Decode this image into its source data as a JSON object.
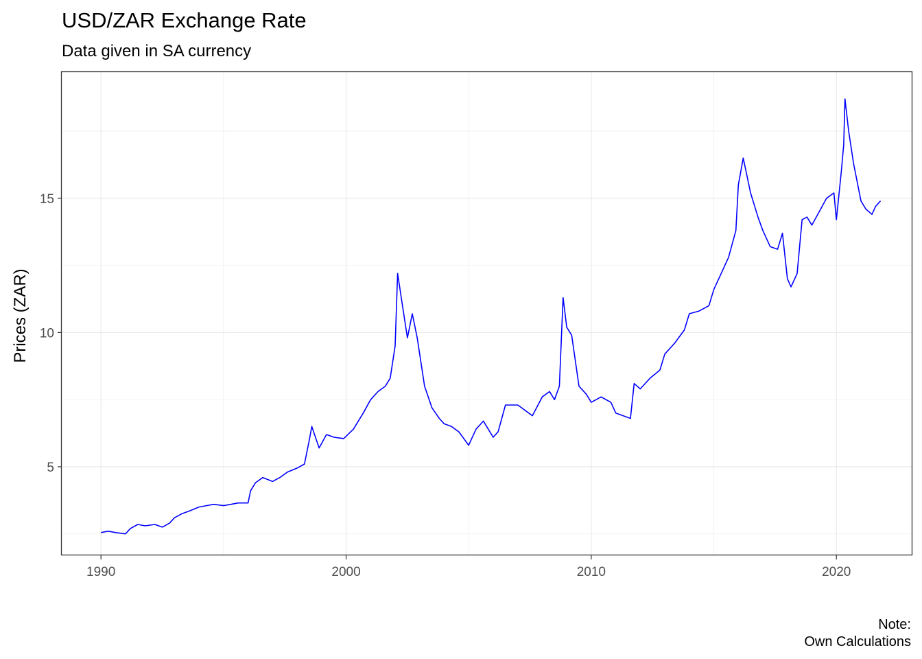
{
  "chart_data": {
    "type": "line",
    "title": "USD/ZAR Exchange Rate",
    "subtitle": "Data given in SA currency",
    "xlabel": "",
    "ylabel": "Prices (ZAR)",
    "caption_line1": "Note:",
    "caption_line2": "Own Calculations",
    "xlim": [
      1988.4,
      2023.1
    ],
    "ylim": [
      1.7,
      19.7
    ],
    "x_ticks": [
      1990,
      2000,
      2010,
      2020
    ],
    "x_tick_labels": [
      "1990",
      "2000",
      "2010",
      "2020"
    ],
    "y_ticks": [
      5,
      10,
      15
    ],
    "y_tick_labels": [
      "5",
      "10",
      "15"
    ],
    "grid": true,
    "line_color": "#0000ff",
    "series": [
      {
        "x": [
          1990.0,
          1990.3,
          1990.6,
          1991.0,
          1991.2,
          1991.5,
          1991.8,
          1992.2,
          1992.5,
          1992.8,
          1993.0,
          1993.3,
          1993.6,
          1994.0,
          1994.3,
          1994.6,
          1995.0,
          1995.3,
          1995.6,
          1996.0,
          1996.1,
          1996.3,
          1996.6,
          1997.0,
          1997.3,
          1997.6,
          1998.0,
          1998.3,
          1998.5,
          1998.6,
          1998.9,
          1999.2,
          1999.5,
          1999.9,
          2000.3,
          2000.7,
          2001.0,
          2001.3,
          2001.6,
          2001.8,
          2002.0,
          2002.1,
          2002.3,
          2002.5,
          2002.7,
          2002.9,
          2003.2,
          2003.5,
          2003.8,
          2004.0,
          2004.3,
          2004.6,
          2005.0,
          2005.3,
          2005.6,
          2006.0,
          2006.2,
          2006.5,
          2006.8,
          2007.0,
          2007.3,
          2007.6,
          2008.0,
          2008.3,
          2008.5,
          2008.7,
          2008.85,
          2009.0,
          2009.2,
          2009.5,
          2009.8,
          2010.0,
          2010.4,
          2010.8,
          2011.0,
          2011.3,
          2011.6,
          2011.75,
          2012.0,
          2012.4,
          2012.8,
          2013.0,
          2013.4,
          2013.8,
          2014.0,
          2014.4,
          2014.8,
          2015.0,
          2015.3,
          2015.6,
          2015.9,
          2016.0,
          2016.2,
          2016.5,
          2016.8,
          2017.0,
          2017.3,
          2017.6,
          2017.8,
          2018.0,
          2018.15,
          2018.4,
          2018.6,
          2018.8,
          2019.0,
          2019.3,
          2019.6,
          2019.9,
          2020.0,
          2020.2,
          2020.3,
          2020.35,
          2020.5,
          2020.7,
          2021.0,
          2021.2,
          2021.45,
          2021.6,
          2021.8
        ],
        "y": [
          2.55,
          2.6,
          2.55,
          2.5,
          2.7,
          2.85,
          2.8,
          2.85,
          2.75,
          2.9,
          3.1,
          3.25,
          3.35,
          3.5,
          3.55,
          3.6,
          3.55,
          3.6,
          3.65,
          3.65,
          4.1,
          4.4,
          4.6,
          4.45,
          4.6,
          4.8,
          4.95,
          5.1,
          6.0,
          6.5,
          5.7,
          6.2,
          6.1,
          6.05,
          6.4,
          7.0,
          7.5,
          7.8,
          8.0,
          8.3,
          9.5,
          12.2,
          11.0,
          9.8,
          10.7,
          9.8,
          8.0,
          7.2,
          6.8,
          6.6,
          6.5,
          6.3,
          5.8,
          6.4,
          6.7,
          6.1,
          6.3,
          7.3,
          7.3,
          7.3,
          7.1,
          6.9,
          7.6,
          7.8,
          7.5,
          8.0,
          11.3,
          10.2,
          9.9,
          8.0,
          7.7,
          7.4,
          7.6,
          7.4,
          7.0,
          6.9,
          6.8,
          8.1,
          7.9,
          8.3,
          8.6,
          9.2,
          9.6,
          10.1,
          10.7,
          10.8,
          11.0,
          11.6,
          12.2,
          12.8,
          13.8,
          15.5,
          16.5,
          15.2,
          14.3,
          13.8,
          13.2,
          13.1,
          13.7,
          12.0,
          11.7,
          12.2,
          14.2,
          14.3,
          14.0,
          14.5,
          15.0,
          15.2,
          14.2,
          16.0,
          17.0,
          18.7,
          17.5,
          16.3,
          14.9,
          14.6,
          14.4,
          14.7,
          14.9
        ]
      }
    ]
  }
}
